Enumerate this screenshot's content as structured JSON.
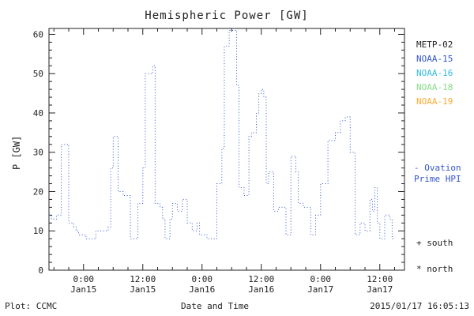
{
  "title": "Hemispheric Power [GW]",
  "ylabel": "P [GW]",
  "xlabel": "Date and Time",
  "footer": {
    "left": "Plot: CCMC",
    "right": "2015/01/17 16:05:13"
  },
  "legend": {
    "satellites": [
      {
        "label": "METP-02",
        "color": "#222222"
      },
      {
        "label": "NOAA-15",
        "color": "#3355cc"
      },
      {
        "label": "NOAA-16",
        "color": "#33bbdd"
      },
      {
        "label": "NOAA-18",
        "color": "#88dd88"
      },
      {
        "label": "NOAA-19",
        "color": "#ffaa33"
      }
    ],
    "line_note": {
      "line1": "- Ovation",
      "line2": "Prime HPI",
      "color": "#3355cc"
    },
    "markers": [
      {
        "symbol": "+",
        "label": "south"
      },
      {
        "symbol": "*",
        "label": "north"
      }
    ]
  },
  "chart_data": {
    "type": "line",
    "style": "dotted-step",
    "color": "#3355cc",
    "title": "Hemispheric Power [GW]",
    "xlabel": "Date and Time",
    "ylabel": "P [GW]",
    "ylim": [
      0,
      61.5
    ],
    "xlim_hours_from_jan15_0000": [
      -7,
      65
    ],
    "yticks": [
      0,
      10,
      20,
      30,
      40,
      50,
      60
    ],
    "y_minor_step": 2,
    "x_minor_step_hours": 3,
    "xticks": [
      {
        "h": 0,
        "time": "0:00",
        "date": "Jan15"
      },
      {
        "h": 12,
        "time": "12:00",
        "date": "Jan15"
      },
      {
        "h": 24,
        "time": "0:00",
        "date": "Jan16"
      },
      {
        "h": 36,
        "time": "12:00",
        "date": "Jan16"
      },
      {
        "h": 48,
        "time": "0:00",
        "date": "Jan17"
      },
      {
        "h": 60,
        "time": "12:00",
        "date": "Jan17"
      }
    ],
    "points": [
      [
        -7,
        14
      ],
      [
        -6.5,
        13
      ],
      [
        -5.5,
        14
      ],
      [
        -4.5,
        32
      ],
      [
        -3.5,
        32
      ],
      [
        -3,
        12
      ],
      [
        -2,
        11
      ],
      [
        -1.5,
        10
      ],
      [
        -1,
        9
      ],
      [
        0,
        9
      ],
      [
        0.5,
        8
      ],
      [
        2,
        8
      ],
      [
        2.5,
        10
      ],
      [
        4.5,
        10
      ],
      [
        5,
        11
      ],
      [
        5.5,
        26
      ],
      [
        6,
        34
      ],
      [
        6.5,
        34
      ],
      [
        7,
        20
      ],
      [
        8,
        19
      ],
      [
        9,
        19
      ],
      [
        9.5,
        8
      ],
      [
        10.5,
        8
      ],
      [
        11,
        17
      ],
      [
        11.5,
        17
      ],
      [
        12,
        26
      ],
      [
        12.5,
        50
      ],
      [
        13.5,
        50
      ],
      [
        14,
        52
      ],
      [
        14.5,
        17
      ],
      [
        15,
        17
      ],
      [
        15.5,
        16
      ],
      [
        16,
        13
      ],
      [
        16.5,
        8
      ],
      [
        17,
        8
      ],
      [
        17.5,
        13
      ],
      [
        18,
        17
      ],
      [
        18.5,
        17
      ],
      [
        19,
        15
      ],
      [
        19.5,
        15
      ],
      [
        20,
        18
      ],
      [
        20.5,
        18
      ],
      [
        21,
        12
      ],
      [
        22,
        10
      ],
      [
        23,
        12
      ],
      [
        23.5,
        9
      ],
      [
        24.5,
        9
      ],
      [
        25,
        8
      ],
      [
        26.5,
        8
      ],
      [
        27,
        22
      ],
      [
        27.5,
        22
      ],
      [
        28,
        31
      ],
      [
        28.5,
        57
      ],
      [
        29,
        57
      ],
      [
        29.5,
        61
      ],
      [
        30.5,
        61
      ],
      [
        31,
        47
      ],
      [
        31.5,
        21
      ],
      [
        32,
        21
      ],
      [
        32.5,
        19
      ],
      [
        33,
        19
      ],
      [
        33.5,
        34
      ],
      [
        34,
        35
      ],
      [
        34.5,
        35
      ],
      [
        35,
        40
      ],
      [
        35.5,
        45
      ],
      [
        36,
        46
      ],
      [
        36.5,
        44
      ],
      [
        37,
        22
      ],
      [
        37.5,
        25
      ],
      [
        38,
        25
      ],
      [
        38.5,
        15
      ],
      [
        39,
        15
      ],
      [
        39.5,
        16
      ],
      [
        40.5,
        16
      ],
      [
        41,
        9
      ],
      [
        41.5,
        9
      ],
      [
        42,
        29
      ],
      [
        42.5,
        29
      ],
      [
        43,
        25
      ],
      [
        43.5,
        17
      ],
      [
        44,
        17
      ],
      [
        44.5,
        16
      ],
      [
        45.5,
        16
      ],
      [
        46,
        9
      ],
      [
        46.5,
        9
      ],
      [
        47,
        14
      ],
      [
        47.5,
        14
      ],
      [
        48,
        22
      ],
      [
        48.5,
        22
      ],
      [
        49.5,
        33
      ],
      [
        50,
        33
      ],
      [
        51,
        35
      ],
      [
        52,
        38
      ],
      [
        52.5,
        38
      ],
      [
        53,
        39
      ],
      [
        53.5,
        39
      ],
      [
        54,
        30
      ],
      [
        54.5,
        30
      ],
      [
        55,
        9
      ],
      [
        55.5,
        9
      ],
      [
        56,
        12
      ],
      [
        56.5,
        12
      ],
      [
        57,
        10
      ],
      [
        57.5,
        10
      ],
      [
        58,
        18
      ],
      [
        58.5,
        15
      ],
      [
        59,
        21
      ],
      [
        59.5,
        12
      ],
      [
        60,
        8
      ],
      [
        60.5,
        8
      ],
      [
        61,
        14
      ],
      [
        61.5,
        14
      ],
      [
        62,
        13
      ],
      [
        62.5,
        8
      ],
      [
        63,
        8
      ]
    ]
  }
}
